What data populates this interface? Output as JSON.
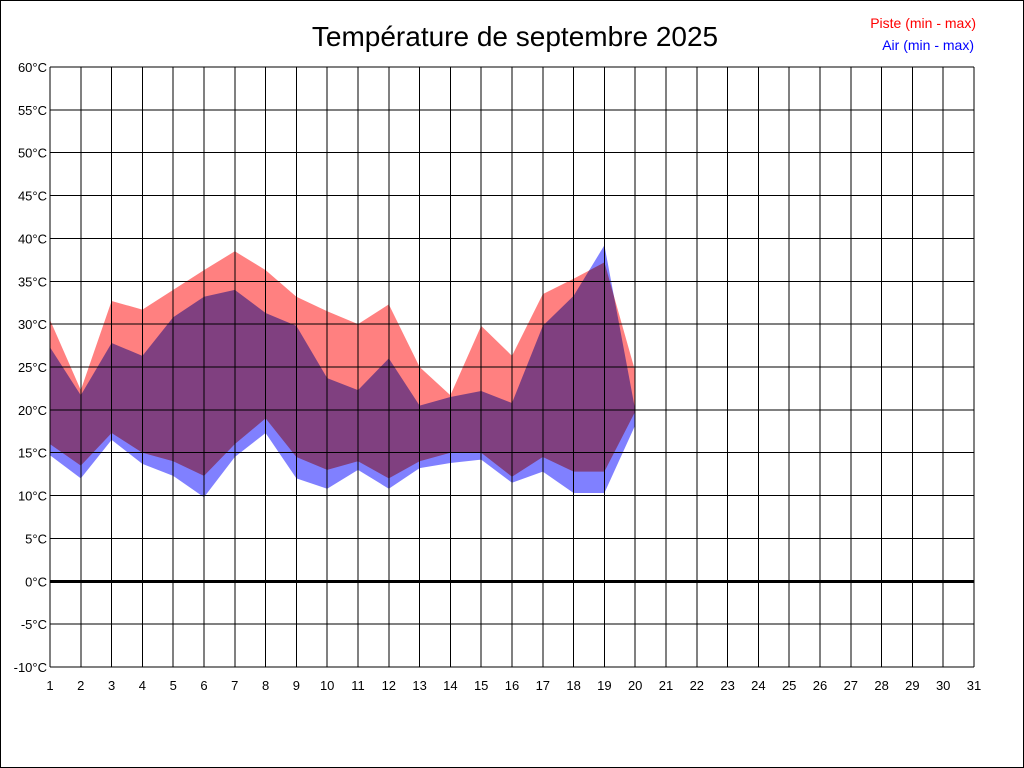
{
  "chart_data": {
    "type": "area",
    "title": "Température de septembre 2025",
    "xlabel": "",
    "ylabel": "",
    "x": [
      1,
      2,
      3,
      4,
      5,
      6,
      7,
      8,
      9,
      10,
      11,
      12,
      13,
      14,
      15,
      16,
      17,
      18,
      19,
      20,
      21,
      22,
      23,
      24,
      25,
      26,
      27,
      28,
      29,
      30,
      31
    ],
    "x_tick_labels": [
      "1",
      "2",
      "3",
      "4",
      "5",
      "6",
      "7",
      "8",
      "9",
      "10",
      "11",
      "12",
      "13",
      "14",
      "15",
      "16",
      "17",
      "18",
      "19",
      "20",
      "21",
      "22",
      "23",
      "24",
      "25",
      "26",
      "27",
      "28",
      "29",
      "30",
      "31"
    ],
    "ylim": [
      -10,
      60
    ],
    "y_ticks": [
      -10,
      -5,
      0,
      5,
      10,
      15,
      20,
      25,
      30,
      35,
      40,
      45,
      50,
      55,
      60
    ],
    "y_tick_labels": [
      "-10°C",
      "-5°C",
      "0°C",
      "5°C",
      "10°C",
      "15°C",
      "20°C",
      "25°C",
      "30°C",
      "35°C",
      "40°C",
      "45°C",
      "50°C",
      "55°C",
      "60°C"
    ],
    "grid": true,
    "zero_line": true,
    "legend_position": "top-right",
    "series": [
      {
        "name": "Piste (min - max)",
        "color": "#ff8080",
        "label_color": "#ff0000",
        "min": [
          16,
          13.5,
          17.3,
          15,
          14,
          12.3,
          16,
          19,
          14.5,
          13,
          14,
          12,
          14,
          15,
          15,
          12.2,
          14.5,
          12.8,
          12.8,
          19.8
        ],
        "max": [
          30.5,
          22.3,
          32.7,
          31.7,
          34,
          36.3,
          38.5,
          36.3,
          33.2,
          31.5,
          30,
          32.3,
          25,
          21.7,
          29.8,
          26.3,
          33.5,
          35.3,
          37.2,
          24.5
        ]
      },
      {
        "name": "Air (min - max)",
        "color": "#8080ff",
        "label_color": "#0000ff",
        "min": [
          14.7,
          12,
          16.5,
          13.7,
          12.3,
          9.8,
          14.5,
          17.3,
          12,
          10.8,
          13,
          10.8,
          13.2,
          13.8,
          14.2,
          11.5,
          12.8,
          10.3,
          10.3,
          18.2
        ],
        "max": [
          27.3,
          21.7,
          27.8,
          26.3,
          30.8,
          33.2,
          34,
          31.3,
          29.8,
          23.7,
          22.3,
          26,
          20.5,
          21.5,
          22.2,
          20.8,
          29.8,
          33.3,
          39.2,
          20
        ]
      }
    ]
  }
}
